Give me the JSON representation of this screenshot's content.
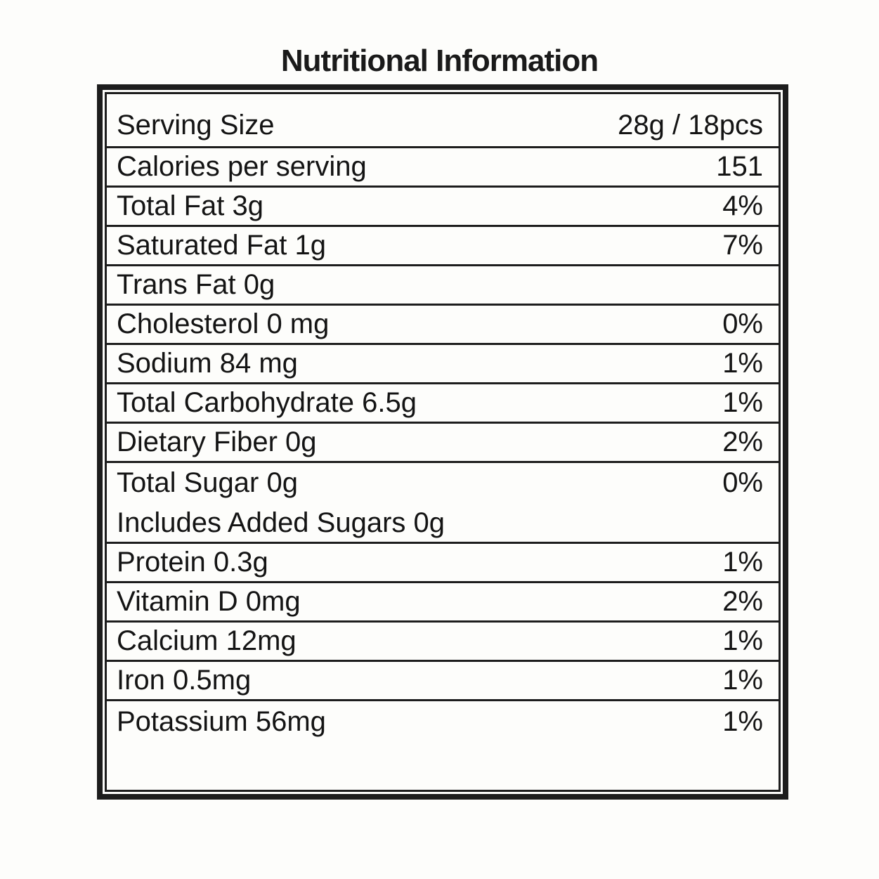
{
  "title": "Nutritional Information",
  "table": {
    "rows": [
      {
        "label": "Serving Size",
        "value": "28g / 18pcs"
      },
      {
        "label": "Calories per serving",
        "value": "151"
      },
      {
        "label": "Total Fat 3g",
        "value": "4%"
      },
      {
        "label": "Saturated Fat 1g",
        "value": "7%"
      },
      {
        "label": "Trans Fat 0g",
        "value": ""
      },
      {
        "label": "Cholesterol 0 mg",
        "value": "0%"
      },
      {
        "label": "Sodium 84 mg",
        "value": "1%"
      },
      {
        "label": "Total Carbohydrate 6.5g",
        "value": "1%"
      },
      {
        "label": "Dietary Fiber 0g",
        "value": "2%"
      },
      {
        "label": "Total Sugar 0g",
        "value": "0%",
        "sublabel": "Includes Added Sugars 0g"
      },
      {
        "label": "Protein 0.3g",
        "value": "1%"
      },
      {
        "label": "Vitamin D 0mg",
        "value": "2%"
      },
      {
        "label": "Calcium 12mg",
        "value": "1%"
      },
      {
        "label": "Iron 0.5mg",
        "value": "1%"
      },
      {
        "label": "Potassium 56mg",
        "value": "1%"
      }
    ]
  }
}
